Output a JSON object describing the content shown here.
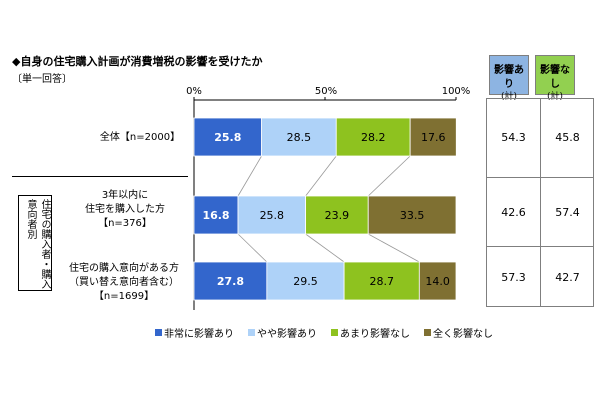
{
  "chart_data": {
    "type": "bar",
    "orientation": "horizontal",
    "stacked": true,
    "title": "◆自身の住宅購入計画が消費増税の影響を受けたか",
    "subtitle": "〔単一回答〕",
    "x_ticks": [
      "0%",
      "50%",
      "100%"
    ],
    "xlim": [
      0,
      100
    ],
    "categories": [
      {
        "lines": [
          "全体【n=2000】"
        ]
      },
      {
        "lines": [
          "3年以内に",
          "住宅を購入した方",
          "【n=376】"
        ]
      },
      {
        "lines": [
          "住宅の購入意向がある方",
          "（買い替え意向者含む）",
          "【n=1699】"
        ]
      }
    ],
    "group_label": "住宅の購入者・購入意向者別",
    "series": [
      {
        "name": "非常に影響あり",
        "color": "#3366cc",
        "text_color": "#ffffff",
        "values": [
          25.8,
          16.8,
          27.8
        ]
      },
      {
        "name": "やや影響あり",
        "color": "#aed2f8",
        "text_color": "#000000",
        "values": [
          28.5,
          25.8,
          29.5
        ]
      },
      {
        "name": "あまり影響なし",
        "color": "#8ec21f",
        "text_color": "#000000",
        "values": [
          28.2,
          23.9,
          28.7
        ]
      },
      {
        "name": "全く影響なし",
        "color": "#7f7032",
        "text_color": "#000000",
        "values": [
          17.6,
          33.5,
          14.0
        ]
      }
    ],
    "totals": {
      "affected_header": "影響あり",
      "not_affected_header": "影響なし",
      "sub_label": "(計)",
      "affected": [
        "54.3",
        "42.6",
        "57.3"
      ],
      "not_affected": [
        "45.8",
        "57.4",
        "42.7"
      ]
    },
    "legend": "bottom"
  }
}
